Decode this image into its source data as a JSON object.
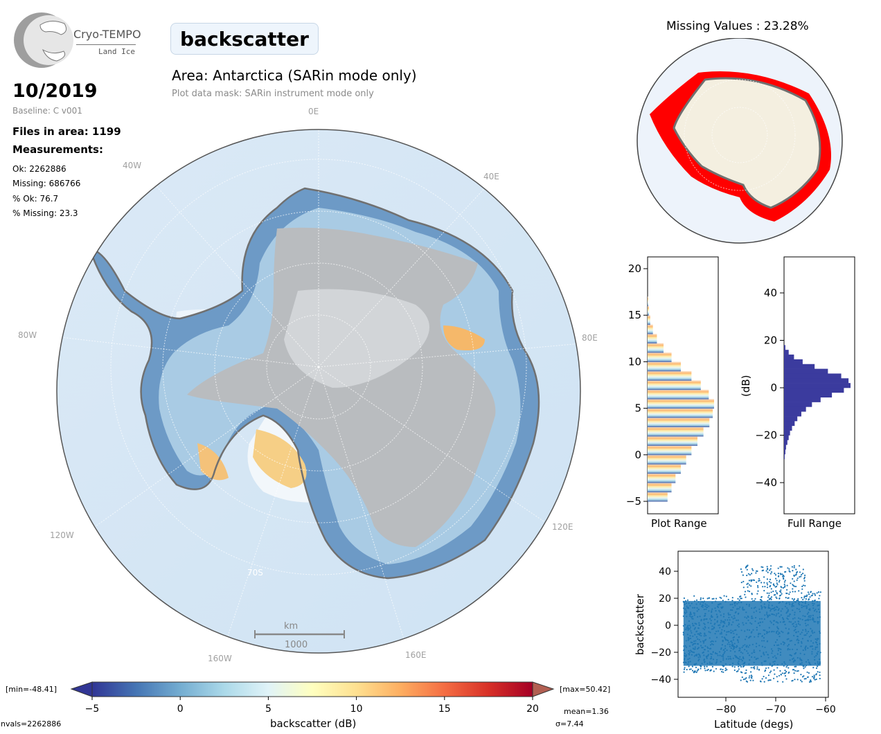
{
  "logo": {
    "title": "Cryo-TEMPO",
    "subtitle": "Land Ice"
  },
  "parameter": "backscatter",
  "date": "10/2019",
  "baseline": "Baseline: C v001",
  "files_in_area": "Files in area: 1199",
  "measurements_heading": "Measurements:",
  "stats": {
    "ok": "Ok: 2262886",
    "missing": "Missing: 686766",
    "pct_ok": "% Ok: 76.7",
    "pct_missing": "% Missing: 23.3"
  },
  "area_title": "Area: Antarctica (SARin mode only)",
  "mask_note": "Plot data mask: SARin instrument mode only",
  "map_labels": {
    "lon_0": "0E",
    "lon_40w": "40W",
    "lon_40e": "40E",
    "lon_80w": "80W",
    "lon_80e": "80E",
    "lon_120w": "120W",
    "lon_120e": "120E",
    "lon_160w": "160W",
    "lon_160e": "160E",
    "lat_70s": "70S"
  },
  "scalebar": {
    "unit": "km",
    "value": "1000"
  },
  "missing_title": "Missing Values : 23.28%",
  "colorbar": {
    "label": "backscatter (dB)",
    "min_label": "[min=-48.41]",
    "max_label": "[max=50.42]",
    "ticks": [
      "−5",
      "0",
      "5",
      "10",
      "15",
      "20"
    ],
    "range": [
      -5,
      20
    ],
    "colors": [
      "#313695",
      "#4575b4",
      "#74add1",
      "#abd9e9",
      "#e0f3f8",
      "#ffffbf",
      "#fee090",
      "#fdae61",
      "#f46d43",
      "#d73027",
      "#a50026"
    ]
  },
  "summary": {
    "nvals": "nvals=2262886",
    "mean": "mean=1.36",
    "sigma": "σ=7.44"
  },
  "hist_plot": {
    "xlabel": "Plot Range",
    "ticks": [
      "20",
      "15",
      "10",
      "5",
      "0",
      "−5"
    ]
  },
  "hist_full": {
    "xlabel": "Full Range",
    "ylabel": "(dB)",
    "ticks": [
      "40",
      "20",
      "0",
      "−20",
      "−40"
    ]
  },
  "scatter": {
    "xlabel": "Latitude (degs)",
    "ylabel": "backscatter",
    "xticks": [
      "−80",
      "−70",
      "−60"
    ],
    "yticks": [
      "40",
      "20",
      "0",
      "−20",
      "−40"
    ]
  },
  "chart_data": [
    {
      "type": "heatmap",
      "title": "Area: Antarctica (SARin mode only)",
      "xlabel": "",
      "ylabel": "",
      "colorbar_label": "backscatter (dB)",
      "zlim": [
        -5,
        20
      ],
      "min": -48.41,
      "max": 50.42,
      "nvals": 2262886,
      "mean": 1.36,
      "sigma": 7.44
    },
    {
      "type": "bar",
      "title": "Plot Range",
      "orientation": "horizontal",
      "ylim": [
        -5,
        21
      ],
      "bins": [
        -5,
        -4,
        -3,
        -2,
        -1,
        0,
        1,
        2,
        3,
        4,
        5,
        6,
        7,
        8,
        9,
        10,
        11,
        12,
        13,
        14,
        15,
        16
      ],
      "values": [
        0.3,
        0.36,
        0.42,
        0.5,
        0.58,
        0.66,
        0.75,
        0.84,
        0.93,
        0.98,
        1.0,
        0.92,
        0.8,
        0.66,
        0.5,
        0.36,
        0.24,
        0.14,
        0.08,
        0.04,
        0.02,
        0.01
      ]
    },
    {
      "type": "bar",
      "title": "Full Range",
      "orientation": "horizontal",
      "ylabel": "(dB)",
      "ylim": [
        -55,
        55
      ],
      "bins": [
        -30,
        -28,
        -26,
        -24,
        -22,
        -20,
        -18,
        -16,
        -14,
        -12,
        -10,
        -8,
        -6,
        -4,
        -2,
        0,
        2,
        4,
        6,
        8,
        10,
        12,
        14,
        16
      ],
      "values": [
        0.01,
        0.02,
        0.03,
        0.05,
        0.07,
        0.09,
        0.12,
        0.16,
        0.2,
        0.26,
        0.33,
        0.42,
        0.55,
        0.72,
        0.9,
        1.0,
        0.97,
        0.86,
        0.66,
        0.46,
        0.28,
        0.15,
        0.07,
        0.02
      ]
    },
    {
      "type": "scatter",
      "xlabel": "Latitude (degs)",
      "ylabel": "backscatter",
      "xlim": [
        -89,
        -60
      ],
      "ylim": [
        -48,
        56
      ]
    }
  ]
}
